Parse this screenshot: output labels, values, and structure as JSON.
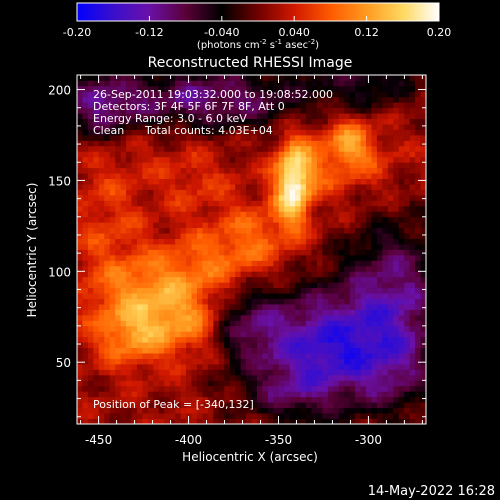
{
  "chart_data": {
    "type": "heatmap",
    "title": "Reconstructed RHESSI Image",
    "xlabel": "Heliocentric X (arcsec)",
    "ylabel": "Heliocentric Y (arcsec)",
    "xlim": [
      -462,
      -268
    ],
    "ylim": [
      16,
      208
    ],
    "x_ticks": [
      -450,
      -400,
      -350,
      -300
    ],
    "y_ticks": [
      50,
      100,
      150,
      200
    ],
    "colorbar": {
      "range": [
        -0.2,
        0.2
      ],
      "ticks": [
        "-0.20",
        "-0.12",
        "-0.040",
        "0.040",
        "0.12",
        "0.20"
      ],
      "unit_base": "(photons cm",
      "unit_exp1": "-2",
      "unit_mid": " s",
      "unit_exp2": "-1",
      "unit_mid2": " asec",
      "unit_exp3": "-2",
      "unit_end": ")",
      "colors": [
        "#0000ff",
        "#3a0fcc",
        "#6a10a8",
        "#5a0038",
        "#000000",
        "#700000",
        "#d01800",
        "#ff5a00",
        "#ff9a20",
        "#ffd860",
        "#ffffff"
      ]
    },
    "annotations": {
      "time_range": "26-Sep-2011 19:03:32.000 to 19:08:52.000",
      "detectors": "Detectors: 3F 4F 5F 6F 7F 8F, Att 0",
      "energy_range": "Energy Range: 3.0 - 6.0 keV",
      "clean_label": "Clean",
      "total_counts": "Total counts: 4.03E+04",
      "peak": "Position of Peak = [-340,132]"
    },
    "peak_position": [
      -340,
      132
    ],
    "features": [
      {
        "cx": -342,
        "cy": 148,
        "sx": 7,
        "sy": 16,
        "amp": 0.17
      },
      {
        "cx": -328,
        "cy": 160,
        "sx": 12,
        "sy": 14,
        "amp": 0.05
      },
      {
        "cx": -310,
        "cy": 172,
        "sx": 8,
        "sy": 9,
        "amp": 0.08
      },
      {
        "cx": -302,
        "cy": 160,
        "sx": 14,
        "sy": 12,
        "amp": 0.04
      },
      {
        "cx": -420,
        "cy": 78,
        "sx": 22,
        "sy": 16,
        "amp": 0.07
      },
      {
        "cx": -432,
        "cy": 64,
        "sx": 14,
        "sy": 12,
        "amp": 0.06
      },
      {
        "cx": -412,
        "cy": 96,
        "sx": 20,
        "sy": 14,
        "amp": 0.05
      },
      {
        "cx": -382,
        "cy": 108,
        "sx": 18,
        "sy": 14,
        "amp": 0.05
      },
      {
        "cx": -362,
        "cy": 120,
        "sx": 14,
        "sy": 14,
        "amp": 0.05
      },
      {
        "cx": -396,
        "cy": 70,
        "sx": 16,
        "sy": 12,
        "amp": 0.05
      },
      {
        "cx": -445,
        "cy": 120,
        "sx": 14,
        "sy": 30,
        "amp": 0.04
      },
      {
        "cx": -430,
        "cy": 168,
        "sx": 28,
        "sy": 18,
        "amp": 0.02
      },
      {
        "cx": -395,
        "cy": 148,
        "sx": 14,
        "sy": 12,
        "amp": 0.03
      },
      {
        "cx": -390,
        "cy": 195,
        "sx": 40,
        "sy": 12,
        "amp": -0.12
      },
      {
        "cx": -450,
        "cy": 190,
        "sx": 16,
        "sy": 14,
        "amp": -0.1
      },
      {
        "cx": -325,
        "cy": 58,
        "sx": 28,
        "sy": 22,
        "amp": -0.17
      },
      {
        "cx": -285,
        "cy": 90,
        "sx": 20,
        "sy": 26,
        "amp": -0.11
      },
      {
        "cx": -370,
        "cy": 72,
        "sx": 14,
        "sy": 14,
        "amp": -0.08
      },
      {
        "cx": -285,
        "cy": 45,
        "sx": 16,
        "sy": 18,
        "amp": -0.06
      },
      {
        "cx": -300,
        "cy": 205,
        "sx": 20,
        "sy": 10,
        "amp": -0.07
      },
      {
        "cx": -345,
        "cy": 32,
        "sx": 18,
        "sy": 10,
        "amp": -0.05
      }
    ],
    "grid": false
  },
  "footer_date": "14-May-2022 16:28"
}
